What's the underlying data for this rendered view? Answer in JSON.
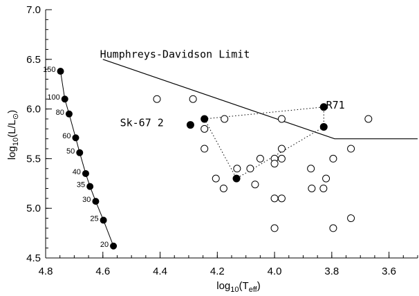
{
  "chart_data": {
    "type": "scatter",
    "xlabel_base": "log",
    "xlabel_sub": "10",
    "xlabel_rest": "(T",
    "xlabel_rest_sub": "eff",
    "xlabel_close": ")",
    "ylabel_base": "log",
    "ylabel_sub": "10",
    "ylabel_rest": "(L/L",
    "ylabel_rest_sub": "⊙",
    "ylabel_close": ")",
    "xlim": [
      4.8,
      3.5
    ],
    "ylim": [
      4.5,
      7.0
    ],
    "x_ticks": [
      {
        "value": 4.8,
        "label": "4.8"
      },
      {
        "value": 4.6,
        "label": "4.6"
      },
      {
        "value": 4.4,
        "label": "4.4"
      },
      {
        "value": 4.2,
        "label": "4.2"
      },
      {
        "value": 4.0,
        "label": "4.0"
      },
      {
        "value": 3.8,
        "label": "3.8"
      },
      {
        "value": 3.6,
        "label": "3.6"
      }
    ],
    "y_ticks": [
      {
        "value": 4.5,
        "label": "4.5"
      },
      {
        "value": 5.0,
        "label": "5.0"
      },
      {
        "value": 5.5,
        "label": "5.5"
      },
      {
        "value": 6.0,
        "label": "6.0"
      },
      {
        "value": 6.5,
        "label": "6.5"
      },
      {
        "value": 7.0,
        "label": "7.0"
      }
    ],
    "zams_track": [
      {
        "x": 4.748,
        "y": 6.38,
        "mass": "150"
      },
      {
        "x": 4.733,
        "y": 6.1,
        "mass": "100"
      },
      {
        "x": 4.718,
        "y": 5.95,
        "mass": "80"
      },
      {
        "x": 4.695,
        "y": 5.71,
        "mass": "60"
      },
      {
        "x": 4.681,
        "y": 5.56,
        "mass": "50"
      },
      {
        "x": 4.66,
        "y": 5.35,
        "mass": "40"
      },
      {
        "x": 4.645,
        "y": 5.22,
        "mass": "35"
      },
      {
        "x": 4.625,
        "y": 5.07,
        "mass": "30"
      },
      {
        "x": 4.598,
        "y": 4.88,
        "mass": "25"
      },
      {
        "x": 4.563,
        "y": 4.62,
        "mass": "20"
      }
    ],
    "hd_limit": {
      "label": "Humphreys-Davidson Limit",
      "label_x": 4.61,
      "label_y": 6.55,
      "points": [
        [
          4.6,
          6.5
        ],
        [
          3.79,
          5.7
        ],
        [
          3.5,
          5.7
        ]
      ]
    },
    "filled_points": [
      {
        "x": 4.294,
        "y": 5.84
      },
      {
        "x": 4.245,
        "y": 5.9
      },
      {
        "x": 4.133,
        "y": 5.3
      },
      {
        "x": 3.828,
        "y": 6.02
      },
      {
        "x": 3.828,
        "y": 5.82
      }
    ],
    "open_points": [
      {
        "x": 4.411,
        "y": 6.1
      },
      {
        "x": 4.285,
        "y": 6.1
      },
      {
        "x": 4.245,
        "y": 5.8
      },
      {
        "x": 4.245,
        "y": 5.6
      },
      {
        "x": 4.175,
        "y": 5.9
      },
      {
        "x": 4.131,
        "y": 5.4
      },
      {
        "x": 4.085,
        "y": 5.4
      },
      {
        "x": 4.05,
        "y": 5.5
      },
      {
        "x": 4.0,
        "y": 5.5
      },
      {
        "x": 4.0,
        "y": 5.45
      },
      {
        "x": 3.975,
        "y": 5.9
      },
      {
        "x": 3.975,
        "y": 5.6
      },
      {
        "x": 3.975,
        "y": 5.5
      },
      {
        "x": 4.205,
        "y": 5.3
      },
      {
        "x": 4.178,
        "y": 5.2
      },
      {
        "x": 4.068,
        "y": 5.24
      },
      {
        "x": 4.0,
        "y": 5.1
      },
      {
        "x": 3.975,
        "y": 5.1
      },
      {
        "x": 3.873,
        "y": 5.4
      },
      {
        "x": 3.87,
        "y": 5.2
      },
      {
        "x": 3.829,
        "y": 5.2
      },
      {
        "x": 3.82,
        "y": 5.3
      },
      {
        "x": 3.795,
        "y": 5.5
      },
      {
        "x": 3.733,
        "y": 5.6
      },
      {
        "x": 3.672,
        "y": 5.9
      },
      {
        "x": 4.0,
        "y": 4.8
      },
      {
        "x": 3.795,
        "y": 4.8
      },
      {
        "x": 3.733,
        "y": 4.9
      }
    ],
    "dotted_path": [
      [
        4.245,
        5.9
      ],
      [
        4.133,
        5.3
      ],
      [
        3.828,
        5.82
      ],
      [
        3.828,
        6.02
      ],
      [
        4.245,
        5.9
      ]
    ],
    "annotations": [
      {
        "text": "Sk-67 2",
        "x": 4.54,
        "y": 5.86
      },
      {
        "text": "R71",
        "x": 3.82,
        "y": 6.04
      }
    ]
  }
}
